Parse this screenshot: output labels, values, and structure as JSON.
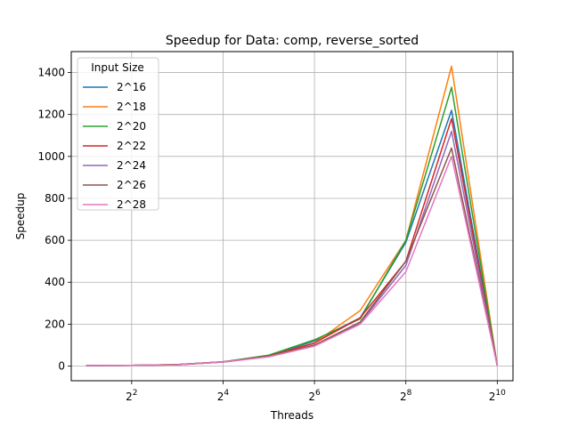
{
  "chart_data": {
    "type": "line",
    "title": "Speedup for Data: comp, reverse_sorted",
    "xlabel": "Threads",
    "ylabel": "Speedup",
    "x_scale": "log2",
    "x_ticks": [
      4,
      16,
      64,
      256,
      1024
    ],
    "x_tick_labels": [
      "2^2",
      "2^4",
      "2^6",
      "2^8",
      "2^10"
    ],
    "y_ticks": [
      0,
      200,
      400,
      600,
      800,
      1000,
      1200,
      1400
    ],
    "y_tick_labels": [
      "0",
      "200",
      "400",
      "600",
      "800",
      "1000",
      "1200",
      "1400"
    ],
    "ylim": [
      -70,
      1500
    ],
    "grid": true,
    "legend_title": "Input Size",
    "legend_position": "upper-left",
    "x": [
      2,
      4,
      8,
      16,
      32,
      64,
      128,
      256,
      512,
      1024
    ],
    "series": [
      {
        "name": "2^16",
        "color": "#1f77b4",
        "values": [
          2,
          3,
          7,
          20,
          48,
          120,
          230,
          590,
          1220,
          2
        ]
      },
      {
        "name": "2^18",
        "color": "#ff7f0e",
        "values": [
          2,
          3,
          7,
          20,
          48,
          110,
          265,
          600,
          1430,
          2
        ]
      },
      {
        "name": "2^20",
        "color": "#2ca02c",
        "values": [
          2,
          3,
          7,
          20,
          52,
          125,
          225,
          600,
          1330,
          2
        ]
      },
      {
        "name": "2^22",
        "color": "#d62728",
        "values": [
          2,
          3,
          7,
          20,
          47,
          110,
          230,
          500,
          1180,
          2
        ]
      },
      {
        "name": "2^24",
        "color": "#9467bd",
        "values": [
          2,
          3,
          6,
          19,
          46,
          100,
          205,
          480,
          1120,
          2
        ]
      },
      {
        "name": "2^26",
        "color": "#8c564b",
        "values": [
          2,
          3,
          6,
          19,
          46,
          100,
          210,
          500,
          1040,
          2
        ]
      },
      {
        "name": "2^28",
        "color": "#e377c2",
        "values": [
          2,
          3,
          6,
          19,
          44,
          95,
          200,
          450,
          1000,
          2
        ]
      }
    ]
  }
}
